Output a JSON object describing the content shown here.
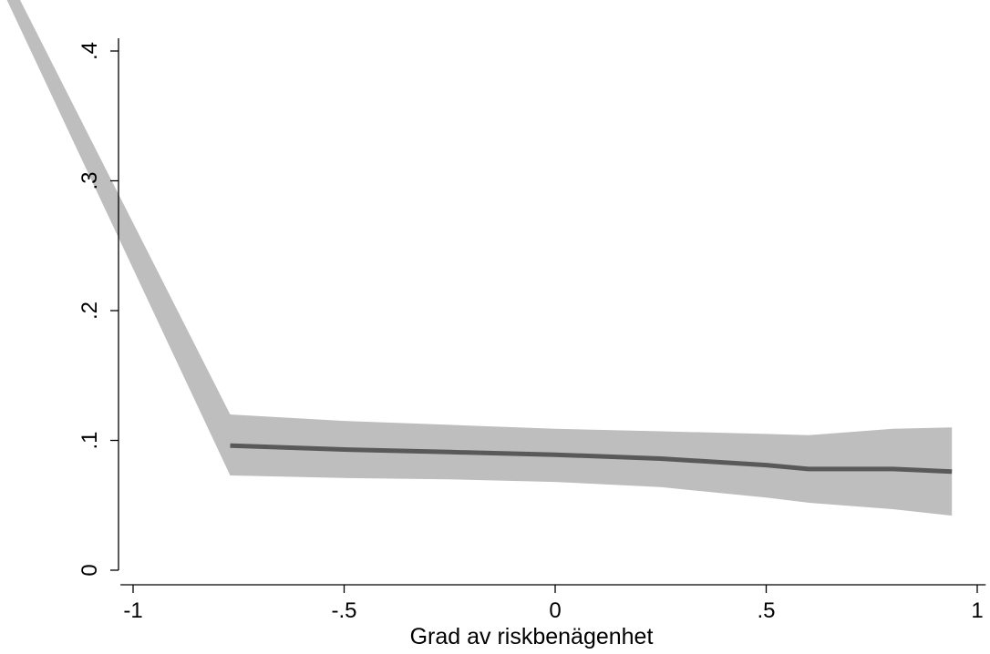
{
  "chart_data": {
    "type": "line",
    "title": "",
    "xlabel": "Grad av riskbenägenhet",
    "ylabel": "",
    "xlim": [
      -1.03,
      1.02
    ],
    "ylim": [
      0,
      0.4
    ],
    "x_ticks": [
      -1,
      -0.5,
      0,
      0.5,
      1
    ],
    "x_tick_labels": [
      "-1",
      "-.5",
      "0",
      ".5",
      "1"
    ],
    "y_ticks": [
      0,
      0.1,
      0.2,
      0.3,
      0.4
    ],
    "y_tick_labels": [
      "0",
      ".1",
      ".2",
      ".3",
      ".4"
    ],
    "grid": false,
    "series": [
      {
        "color": "#595959",
        "x": [
          -0.77,
          -0.5,
          -0.25,
          0,
          0.25,
          0.5,
          0.6,
          0.8,
          0.94
        ],
        "y": [
          0.096,
          0.093,
          0.091,
          0.089,
          0.086,
          0.081,
          0.078,
          0.078,
          0.076
        ]
      }
    ],
    "confidence_band": {
      "color": "#bebebe",
      "x": [
        -1.3,
        -0.77,
        -0.5,
        -0.25,
        0,
        0.25,
        0.5,
        0.6,
        0.8,
        0.94
      ],
      "upper": [
        0.46,
        0.12,
        0.115,
        0.112,
        0.109,
        0.107,
        0.105,
        0.104,
        0.109,
        0.11
      ],
      "lower": [
        0.44,
        0.073,
        0.071,
        0.07,
        0.068,
        0.064,
        0.056,
        0.052,
        0.047,
        0.042
      ]
    }
  }
}
